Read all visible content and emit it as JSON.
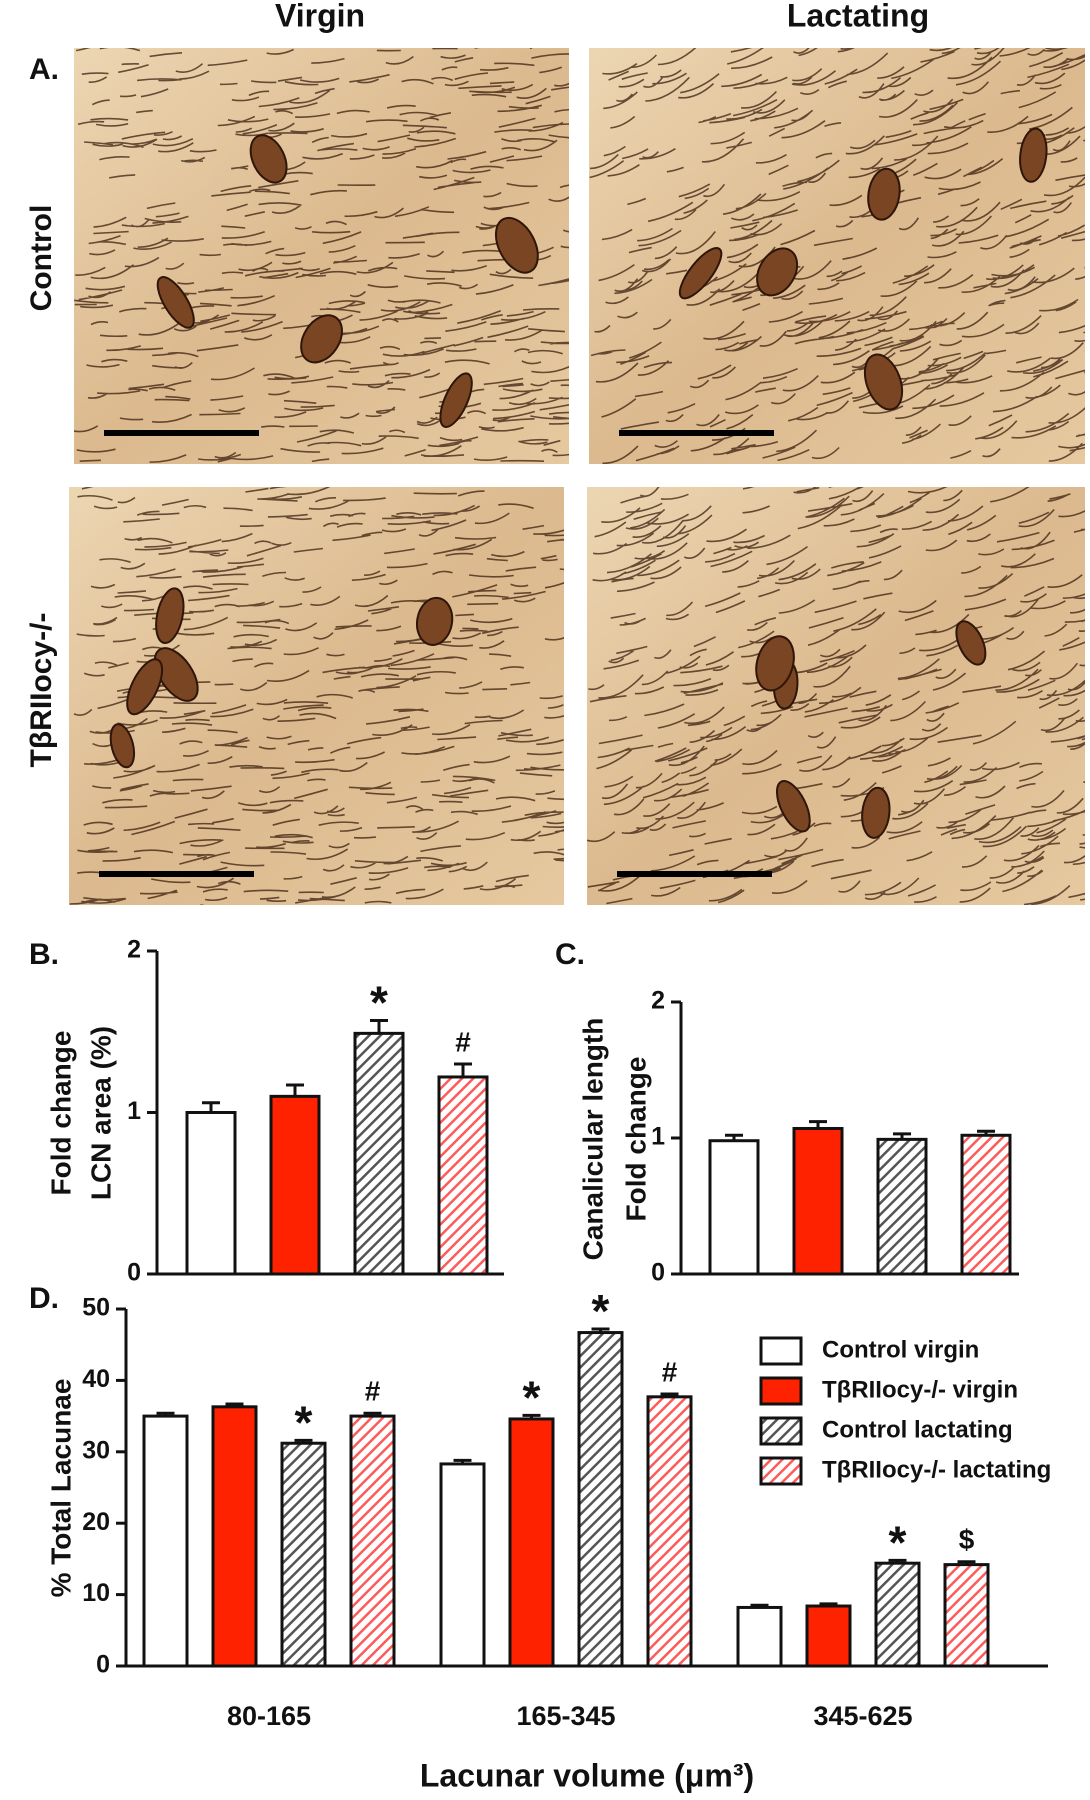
{
  "panel_a": {
    "panel_label": "A.",
    "columns": [
      "Virgin",
      "Lactating"
    ],
    "rows": [
      "Control",
      "TβRIIocy-/-"
    ]
  },
  "chart_data": [
    {
      "type": "bar",
      "panel_label": "B.",
      "ylabel": [
        "Fold change",
        "LCN area (%)"
      ],
      "values": [
        1.0,
        1.1,
        1.49,
        1.22
      ],
      "errors": [
        0.06,
        0.07,
        0.08,
        0.08
      ],
      "colors": [
        "#ffffff",
        "#ff2200",
        "#555555",
        "#ff5a5a"
      ],
      "hatch": [
        false,
        false,
        true,
        true
      ],
      "annotations": [
        null,
        null,
        "*",
        "#"
      ],
      "ylim": [
        0,
        2
      ],
      "yticks": [
        0,
        1,
        2
      ]
    },
    {
      "type": "bar",
      "panel_label": "C.",
      "ylabel": [
        "Canalicular length",
        "Fold change"
      ],
      "values": [
        0.98,
        1.07,
        0.99,
        1.02
      ],
      "errors": [
        0.04,
        0.05,
        0.04,
        0.03
      ],
      "colors": [
        "#ffffff",
        "#ff2200",
        "#555555",
        "#ff5a5a"
      ],
      "hatch": [
        false,
        false,
        true,
        true
      ],
      "annotations": [
        null,
        null,
        null,
        null
      ],
      "ylim": [
        0,
        2
      ],
      "yticks": [
        0,
        1,
        2
      ]
    },
    {
      "type": "bar",
      "panel_label": "D.",
      "ylabel": [
        "% Total Lacunae"
      ],
      "xlabel": "Lacunar volume (μm³)",
      "categories": [
        "80-165",
        "165-345",
        "345-625"
      ],
      "series": [
        {
          "name": " Control virgin",
          "color": "#ffffff",
          "hatch": false,
          "values": [
            35.0,
            28.3,
            8.2
          ],
          "errors": [
            0.4,
            0.5,
            0.3
          ],
          "annotations": [
            null,
            null,
            null
          ]
        },
        {
          "name": "TβRIIocy-/- virgin",
          "color": "#ff2200",
          "hatch": false,
          "values": [
            36.3,
            34.6,
            8.4
          ],
          "errors": [
            0.4,
            0.5,
            0.3
          ],
          "annotations": [
            null,
            "*",
            null
          ]
        },
        {
          "name": "Control lactating",
          "color": "#555555",
          "hatch": true,
          "values": [
            31.2,
            46.7,
            14.4
          ],
          "errors": [
            0.4,
            0.5,
            0.4
          ],
          "annotations": [
            "*",
            "*",
            "*"
          ]
        },
        {
          "name": "TβRIIocy-/- lactating",
          "color": "#ff5a5a",
          "hatch": true,
          "values": [
            35.0,
            37.7,
            14.2
          ],
          "errors": [
            0.4,
            0.4,
            0.4
          ],
          "annotations": [
            "#",
            "#",
            "$"
          ]
        }
      ],
      "ylim": [
        0,
        50
      ],
      "yticks": [
        0,
        10,
        20,
        30,
        40,
        50
      ]
    }
  ]
}
